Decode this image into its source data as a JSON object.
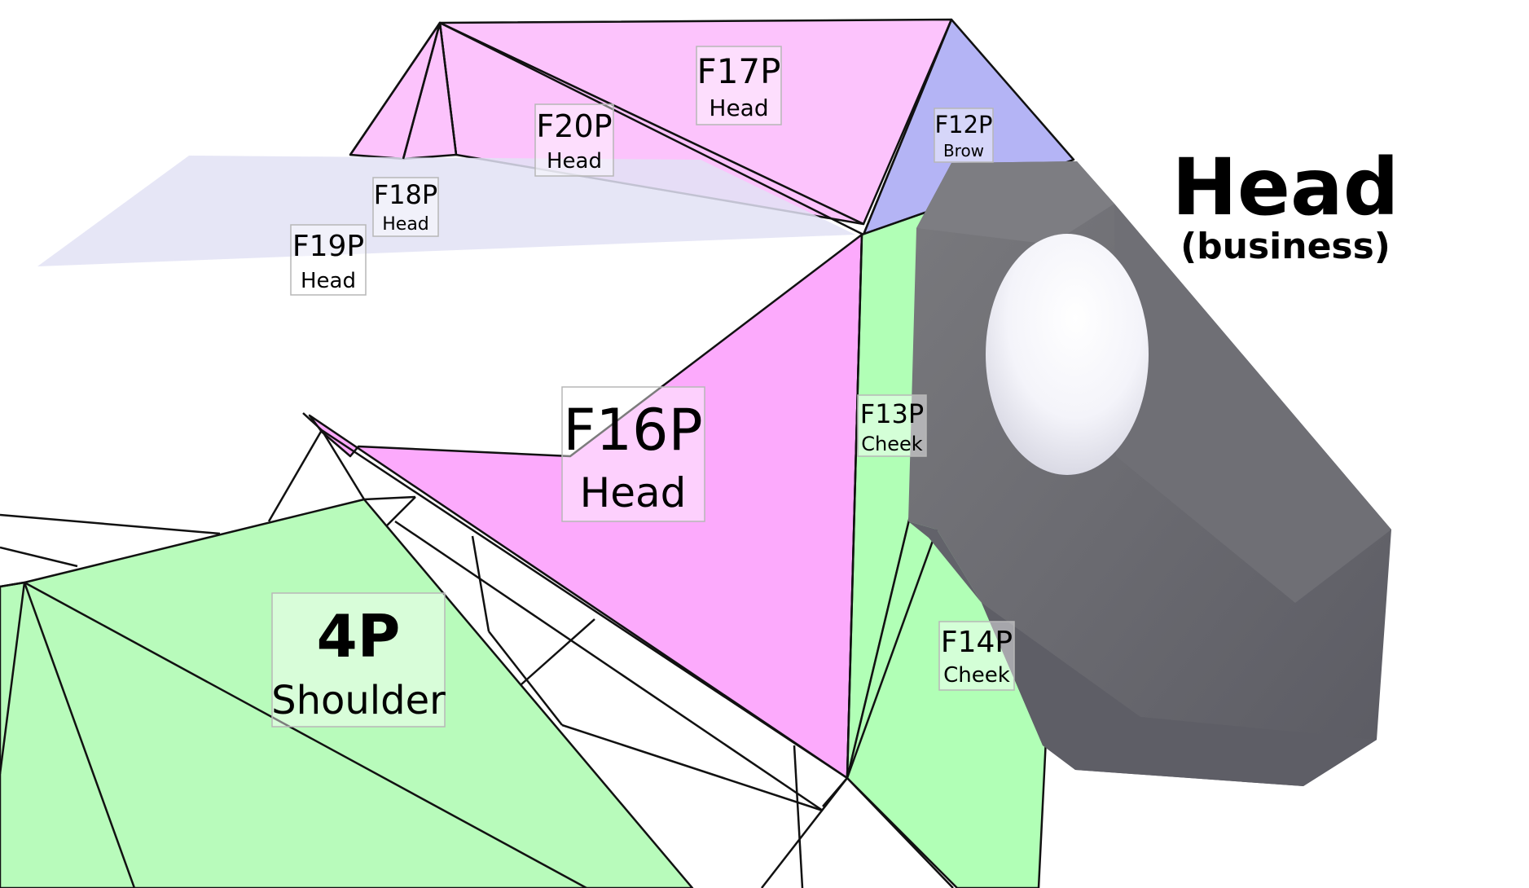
{
  "colors": {
    "head_face": "#fcc3fc",
    "head_face_dark": "#fcaafc",
    "brow_face": "#b4b4f5",
    "cheek_face": "#b1ffb6",
    "shoulder_face": "#b8fbbb",
    "ghost_plane": "#e2e2f5",
    "business_piece": "#686870",
    "outline": "#111111"
  },
  "title": {
    "main": "Head",
    "sub": "(business)"
  },
  "labels": [
    {
      "id": "f17p",
      "code": "F17P",
      "part": "Head"
    },
    {
      "id": "f12p",
      "code": "F12P",
      "part": "Brow"
    },
    {
      "id": "f20p",
      "code": "F20P",
      "part": "Head"
    },
    {
      "id": "f18p",
      "code": "F18P",
      "part": "Head"
    },
    {
      "id": "f19p",
      "code": "F19P",
      "part": "Head"
    },
    {
      "id": "f16p",
      "code": "F16P",
      "part": "Head"
    },
    {
      "id": "f13p",
      "code": "F13P",
      "part": "Cheek"
    },
    {
      "id": "f14p",
      "code": "F14P",
      "part": "Cheek"
    },
    {
      "id": "p4",
      "code": "4P",
      "part": "Shoulder"
    }
  ]
}
